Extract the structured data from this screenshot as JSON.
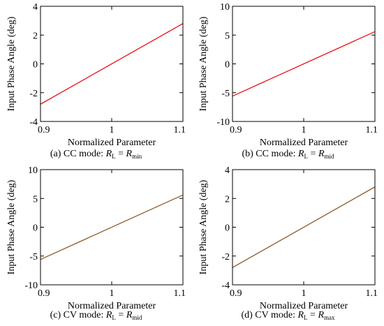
{
  "chart_data": [
    {
      "type": "line",
      "caption": {
        "prefix": "(a) CC mode: ",
        "lhs": "R",
        "lhs_sub": "L",
        "eq": " = ",
        "rhs": "R",
        "rhs_sub": "min"
      },
      "xlabel": "Normalized Parameter",
      "ylabel": "Input Phase Angle (deg)",
      "xlim": [
        0.9,
        1.1
      ],
      "ylim": [
        -4,
        4
      ],
      "xticks": [
        "0.9",
        "1",
        "1.1"
      ],
      "xtick_values": [
        0.9,
        1.0,
        1.1
      ],
      "yticks": [
        "-4",
        "-2",
        "0",
        "2",
        "4"
      ],
      "ytick_values": [
        -4,
        -2,
        0,
        2,
        4
      ],
      "series": [
        {
          "x": [
            0.9,
            1.1
          ],
          "y": [
            -2.8,
            2.8
          ],
          "color": "#e8101a"
        }
      ]
    },
    {
      "type": "line",
      "caption": {
        "prefix": "(b) CC mode: ",
        "lhs": "R",
        "lhs_sub": "L",
        "eq": " = ",
        "rhs": "R",
        "rhs_sub": "mid"
      },
      "xlabel": "Normalized Parameter",
      "ylabel": "Input Phase Angle (deg)",
      "xlim": [
        0.9,
        1.1
      ],
      "ylim": [
        -10,
        10
      ],
      "xticks": [
        "0.9",
        "1",
        "1.1"
      ],
      "xtick_values": [
        0.9,
        1.0,
        1.1
      ],
      "yticks": [
        "-10",
        "-5",
        "0",
        "5",
        "10"
      ],
      "ytick_values": [
        -10,
        -5,
        0,
        5,
        10
      ],
      "series": [
        {
          "x": [
            0.9,
            1.1
          ],
          "y": [
            -5.6,
            5.6
          ],
          "color": "#e8101a"
        }
      ]
    },
    {
      "type": "line",
      "caption": {
        "prefix": "(c) CV mode: ",
        "lhs": "R",
        "lhs_sub": "L",
        "eq": " = ",
        "rhs": "R",
        "rhs_sub": "mid"
      },
      "xlabel": "Normalized Parameter",
      "ylabel": "Input Phase Angle (deg)",
      "xlim": [
        0.9,
        1.1
      ],
      "ylim": [
        -10,
        10
      ],
      "xticks": [
        "0.9",
        "1",
        "1.1"
      ],
      "xtick_values": [
        0.9,
        1.0,
        1.1
      ],
      "yticks": [
        "-10",
        "-5",
        "0",
        "5",
        "10"
      ],
      "ytick_values": [
        -10,
        -5,
        0,
        5,
        10
      ],
      "series": [
        {
          "x": [
            0.9,
            1.1
          ],
          "y": [
            -5.6,
            5.6
          ],
          "color": "#8b5a2b"
        }
      ]
    },
    {
      "type": "line",
      "caption": {
        "prefix": "(d) CV mode: ",
        "lhs": "R",
        "lhs_sub": "L",
        "eq": " = ",
        "rhs": "R",
        "rhs_sub": "max"
      },
      "xlabel": "Normalized Parameter",
      "ylabel": "Input Phase Angle (deg)",
      "xlim": [
        0.9,
        1.1
      ],
      "ylim": [
        -4,
        4
      ],
      "xticks": [
        "0.9",
        "1",
        "1.1"
      ],
      "xtick_values": [
        0.9,
        1.0,
        1.1
      ],
      "yticks": [
        "-4",
        "-2",
        "0",
        "2",
        "4"
      ],
      "ytick_values": [
        -4,
        -2,
        0,
        2,
        4
      ],
      "series": [
        {
          "x": [
            0.9,
            1.1
          ],
          "y": [
            -2.8,
            2.8
          ],
          "color": "#8b5a2b"
        }
      ]
    }
  ]
}
